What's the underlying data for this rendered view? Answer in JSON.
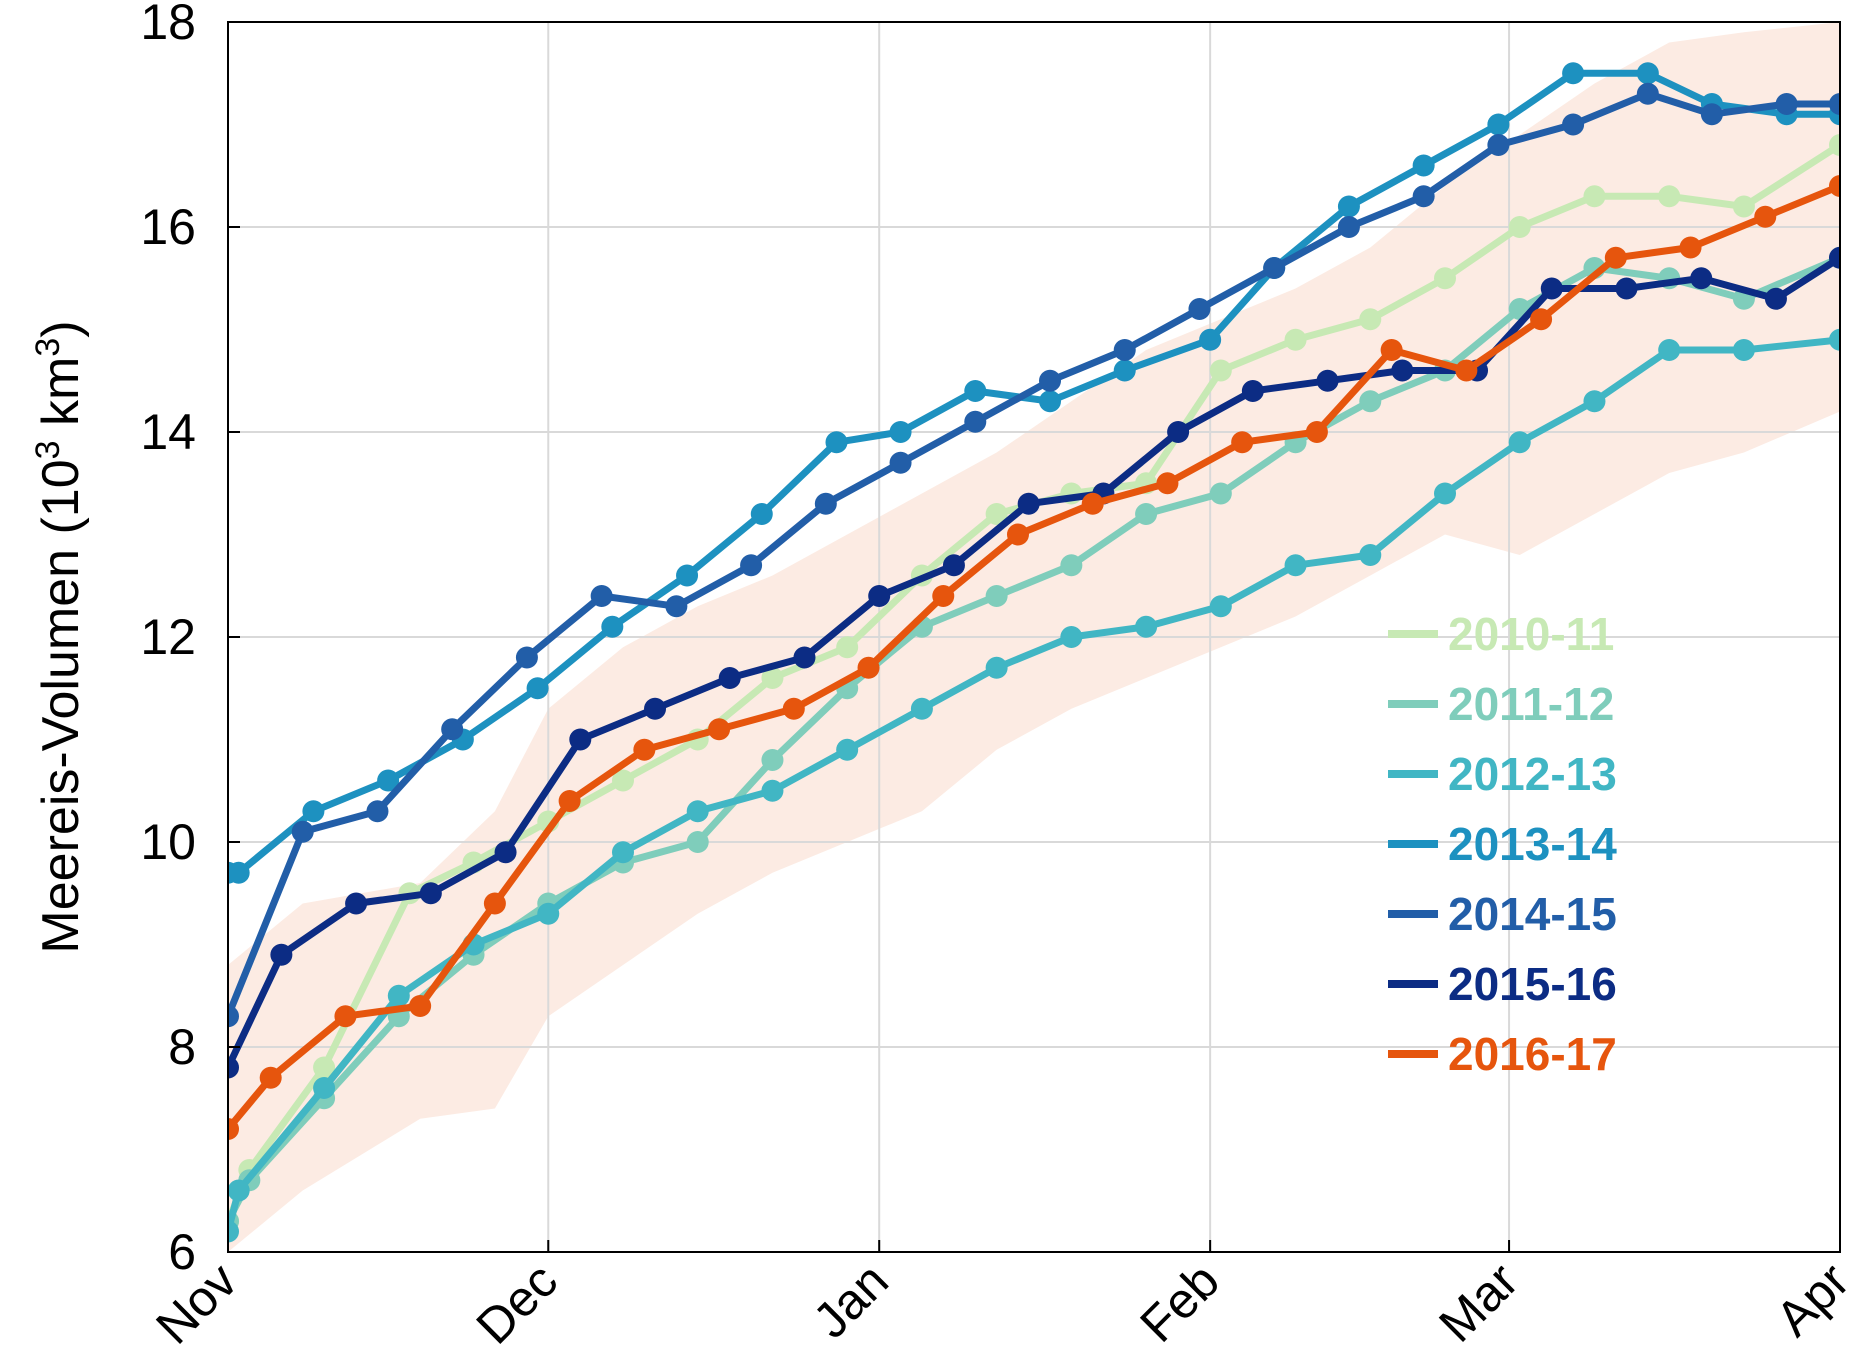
{
  "chart_data": {
    "type": "line",
    "title": "",
    "xlabel": "",
    "ylabel": {
      "main": "Meereis-Volumen (10",
      "exp1": "3",
      "unit": " km",
      "exp2": "3",
      "close": ")"
    },
    "ylim": [
      6,
      18
    ],
    "yticks": [
      "6",
      "8",
      "10",
      "12",
      "14",
      "16",
      "18"
    ],
    "xlim": [
      0,
      151
    ],
    "xticks": [
      {
        "label": "Nov",
        "day": 0
      },
      {
        "label": "Dec",
        "day": 30
      },
      {
        "label": "Jan",
        "day": 61
      },
      {
        "label": "Feb",
        "day": 92
      },
      {
        "label": "Mar",
        "day": 120
      },
      {
        "label": "Apr",
        "day": 151
      }
    ],
    "grid": true,
    "legend_position": "right",
    "band": {
      "color": "#fcebe3",
      "x": [
        0,
        7,
        18,
        25,
        30,
        37,
        44,
        51,
        58,
        65,
        72,
        79,
        86,
        93,
        100,
        107,
        114,
        121,
        128,
        135,
        142,
        151
      ],
      "upper": [
        8.8,
        9.4,
        9.6,
        10.3,
        11.3,
        11.9,
        12.3,
        12.6,
        13.0,
        13.4,
        13.8,
        14.3,
        14.8,
        15.1,
        15.4,
        15.8,
        16.4,
        16.9,
        17.4,
        17.8,
        17.9,
        18.0
      ],
      "lower": [
        6.0,
        6.6,
        7.3,
        7.4,
        8.3,
        8.8,
        9.3,
        9.7,
        10.0,
        10.3,
        10.9,
        11.3,
        11.6,
        11.9,
        12.2,
        12.6,
        13.0,
        12.8,
        13.2,
        13.6,
        13.8,
        14.2
      ]
    },
    "series": [
      {
        "name": "2010-11",
        "color": "#c7e9b4",
        "x": [
          0,
          2,
          9,
          17,
          23,
          30,
          37,
          44,
          51,
          58,
          65,
          72,
          79,
          86,
          93,
          100,
          107,
          114,
          121,
          128,
          135,
          142,
          151
        ],
        "y": [
          6.3,
          6.8,
          7.8,
          9.5,
          9.8,
          10.2,
          10.6,
          11.0,
          11.6,
          11.9,
          12.6,
          13.2,
          13.4,
          13.5,
          14.6,
          14.9,
          15.1,
          15.5,
          16.0,
          16.3,
          16.3,
          16.2,
          16.8
        ]
      },
      {
        "name": "2011-12",
        "color": "#7fcdbb",
        "x": [
          0,
          2,
          9,
          16,
          23,
          30,
          37,
          44,
          51,
          58,
          65,
          72,
          79,
          86,
          93,
          100,
          107,
          114,
          121,
          128,
          135,
          142,
          151
        ],
        "y": [
          6.3,
          6.7,
          7.5,
          8.3,
          8.9,
          9.4,
          9.8,
          10.0,
          10.8,
          11.5,
          12.1,
          12.4,
          12.7,
          13.2,
          13.4,
          13.9,
          14.3,
          14.6,
          15.2,
          15.6,
          15.5,
          15.3,
          15.7
        ]
      },
      {
        "name": "2012-13",
        "color": "#41b6c4",
        "x": [
          0,
          1,
          9,
          16,
          23,
          30,
          37,
          44,
          51,
          58,
          65,
          72,
          79,
          86,
          93,
          100,
          107,
          114,
          121,
          128,
          135,
          142,
          151
        ],
        "y": [
          6.2,
          6.6,
          7.6,
          8.5,
          9.0,
          9.3,
          9.9,
          10.3,
          10.5,
          10.9,
          11.3,
          11.7,
          12.0,
          12.1,
          12.3,
          12.7,
          12.8,
          13.4,
          13.9,
          14.3,
          14.8,
          14.8,
          14.9
        ]
      },
      {
        "name": "2013-14",
        "color": "#1d91c0",
        "x": [
          0,
          1,
          8,
          15,
          22,
          29,
          36,
          43,
          50,
          57,
          63,
          70,
          77,
          84,
          92,
          98,
          105,
          112,
          119,
          126,
          133,
          139,
          146,
          151
        ],
        "y": [
          9.7,
          9.7,
          10.3,
          10.6,
          11.0,
          11.5,
          12.1,
          12.6,
          13.2,
          13.9,
          14.0,
          14.4,
          14.3,
          14.6,
          14.9,
          15.6,
          16.2,
          16.6,
          17.0,
          17.5,
          17.5,
          17.2,
          17.1,
          17.1
        ]
      },
      {
        "name": "2014-15",
        "color": "#225ea8",
        "x": [
          0,
          7,
          14,
          21,
          28,
          35,
          42,
          49,
          56,
          63,
          70,
          77,
          84,
          91,
          98,
          105,
          112,
          119,
          126,
          133,
          139,
          146,
          151
        ],
        "y": [
          8.3,
          10.1,
          10.3,
          11.1,
          11.8,
          12.4,
          12.3,
          12.7,
          13.3,
          13.7,
          14.1,
          14.5,
          14.8,
          15.2,
          15.6,
          16.0,
          16.3,
          16.8,
          17.0,
          17.3,
          17.1,
          17.2,
          17.2
        ]
      },
      {
        "name": "2015-16",
        "color": "#0c2c84",
        "x": [
          0,
          5,
          12,
          19,
          26,
          33,
          40,
          47,
          54,
          61,
          68,
          75,
          82,
          89,
          96,
          103,
          110,
          117,
          124,
          131,
          138,
          145,
          151
        ],
        "y": [
          7.8,
          8.9,
          9.4,
          9.5,
          9.9,
          11.0,
          11.3,
          11.6,
          11.8,
          12.4,
          12.7,
          13.3,
          13.4,
          14.0,
          14.4,
          14.5,
          14.6,
          14.6,
          15.4,
          15.4,
          15.5,
          15.3,
          15.7
        ]
      },
      {
        "name": "2016-17",
        "color": "#e6550d",
        "x": [
          0,
          4,
          11,
          18,
          25,
          32,
          39,
          46,
          53,
          60,
          67,
          74,
          81,
          88,
          95,
          102,
          109,
          116,
          123,
          130,
          137,
          144,
          151
        ],
        "y": [
          7.2,
          7.7,
          8.3,
          8.4,
          9.4,
          10.4,
          10.9,
          11.1,
          11.3,
          11.7,
          12.4,
          13.0,
          13.3,
          13.5,
          13.9,
          14.0,
          14.8,
          14.6,
          15.1,
          15.7,
          15.8,
          16.1,
          16.4
        ]
      }
    ]
  }
}
